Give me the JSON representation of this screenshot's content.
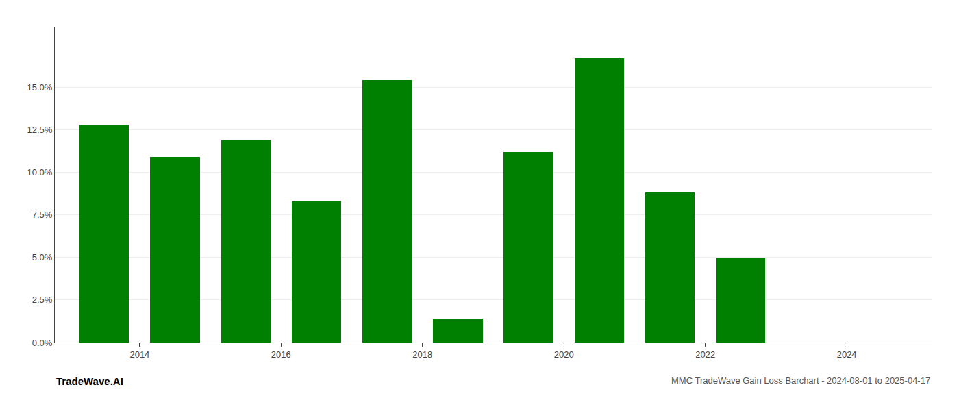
{
  "chart_data": {
    "type": "bar",
    "x": [
      2013.5,
      2014.5,
      2015.5,
      2016.5,
      2017.5,
      2018.5,
      2019.5,
      2020.5,
      2021.5,
      2022.5,
      2023.5
    ],
    "values": [
      0.128,
      0.109,
      0.119,
      0.083,
      0.154,
      0.014,
      0.112,
      0.167,
      0.088,
      0.05,
      0.0
    ],
    "color": "#008000",
    "xlim": [
      2012.8,
      2025.2
    ],
    "xticks": [
      2014,
      2016,
      2018,
      2020,
      2022,
      2024
    ],
    "ylim": [
      0,
      0.185
    ],
    "yticks": [
      {
        "value": 0.0,
        "label": "0.0%"
      },
      {
        "value": 0.025,
        "label": "2.5%"
      },
      {
        "value": 0.05,
        "label": "5.0%"
      },
      {
        "value": 0.075,
        "label": "7.5%"
      },
      {
        "value": 0.1,
        "label": "10.0%"
      },
      {
        "value": 0.125,
        "label": "12.5%"
      },
      {
        "value": 0.15,
        "label": "15.0%"
      }
    ],
    "grid": true,
    "annotations": [
      "TradeWave.AI",
      "MMC TradeWave Gain Loss Barchart - 2024-08-01 to 2025-04-17"
    ]
  }
}
